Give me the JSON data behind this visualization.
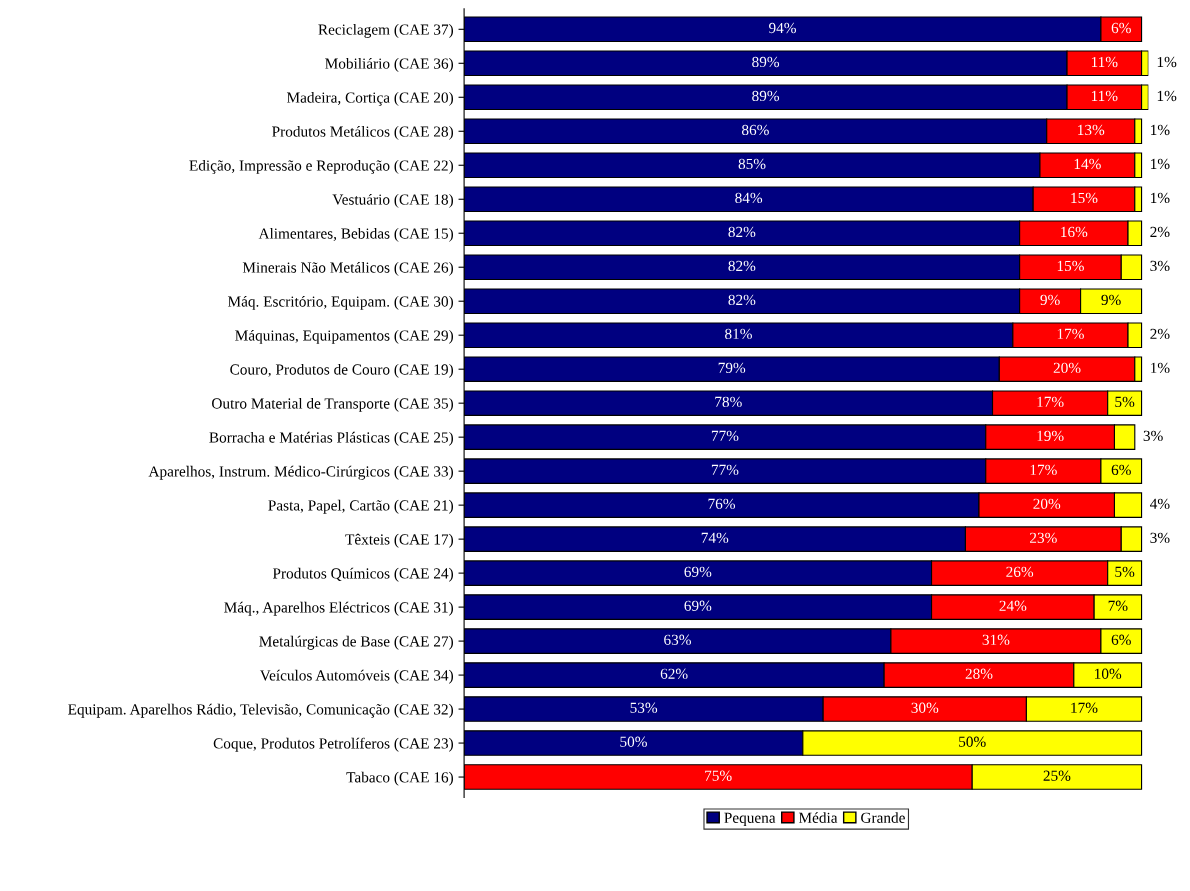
{
  "chart_data": {
    "type": "bar",
    "orientation": "horizontal",
    "stacked": true,
    "tick_labels": "y",
    "grid": false,
    "legend": "bottom",
    "categories": [
      "Reciclagem (CAE 37)",
      "Mobiliário (CAE 36)",
      "Madeira, Cortiça (CAE 20)",
      "Produtos Metálicos (CAE 28)",
      "Edição, Impressão e Reprodução (CAE 22)",
      "Vestuário (CAE 18)",
      "Alimentares, Bebidas (CAE 15)",
      "Minerais Não Metálicos (CAE 26)",
      "Máq. Escritório, Equipam. (CAE 30)",
      "Máquinas, Equipamentos (CAE 29)",
      "Couro, Produtos de Couro (CAE 19)",
      "Outro Material de Transporte (CAE 35)",
      "Borracha e Matérias Plásticas (CAE 25)",
      "Aparelhos, Instrum. Médico-Cirúrgicos (CAE 33)",
      "Pasta, Papel, Cartão (CAE 21)",
      "Têxteis (CAE 17)",
      "Produtos Químicos (CAE 24)",
      "Máq., Aparelhos Eléctricos (CAE 31)",
      "Metalúrgicas de Base (CAE 27)",
      "Veículos Automóveis (CAE 34)",
      "Equipam. Aparelhos Rádio, Televisão, Comunicação (CAE 32)",
      "Coque, Produtos Petrolíferos (CAE 23)",
      "Tabaco (CAE 16)"
    ],
    "series": [
      {
        "name": "Pequena",
        "color": "#000080",
        "values": [
          94,
          89,
          89,
          86,
          85,
          84,
          82,
          82,
          82,
          81,
          79,
          78,
          77,
          77,
          76,
          74,
          69,
          69,
          63,
          62,
          53,
          50,
          0
        ],
        "value_labels": [
          "94%",
          "89%",
          "89%",
          "86%",
          "85%",
          "84%",
          "82%",
          "82%",
          "82%",
          "81%",
          "79%",
          "78%",
          "77%",
          "77%",
          "76%",
          "74%",
          "69%",
          "69%",
          "63%",
          "62%",
          "53%",
          "50%",
          null
        ]
      },
      {
        "name": "Média",
        "color": "#ff0000",
        "values": [
          6,
          11,
          11,
          13,
          14,
          15,
          16,
          15,
          9,
          17,
          20,
          17,
          19,
          17,
          20,
          23,
          26,
          24,
          31,
          28,
          30,
          0,
          75
        ],
        "value_labels": [
          "6%",
          "11%",
          "11%",
          "13%",
          "14%",
          "15%",
          "16%",
          "15%",
          "9%",
          "17%",
          "20%",
          "17%",
          "19%",
          "17%",
          "20%",
          "23%",
          "26%",
          "24%",
          "31%",
          "28%",
          "30%",
          null,
          "75%"
        ]
      },
      {
        "name": "Grande",
        "color": "#ffff00",
        "values": [
          0,
          1,
          1,
          1,
          1,
          1,
          2,
          3,
          9,
          2,
          1,
          5,
          3,
          6,
          4,
          3,
          5,
          7,
          6,
          10,
          17,
          50,
          25
        ],
        "value_labels": [
          null,
          "1%",
          "1%",
          "1%",
          "1%",
          "1%",
          "2%",
          "3%",
          "9%",
          "2%",
          "1%",
          "5%",
          "3%",
          "6%",
          "4%",
          "3%",
          "5%",
          "7%",
          "6%",
          "10%",
          "17%",
          "50%",
          "25%"
        ]
      }
    ]
  }
}
